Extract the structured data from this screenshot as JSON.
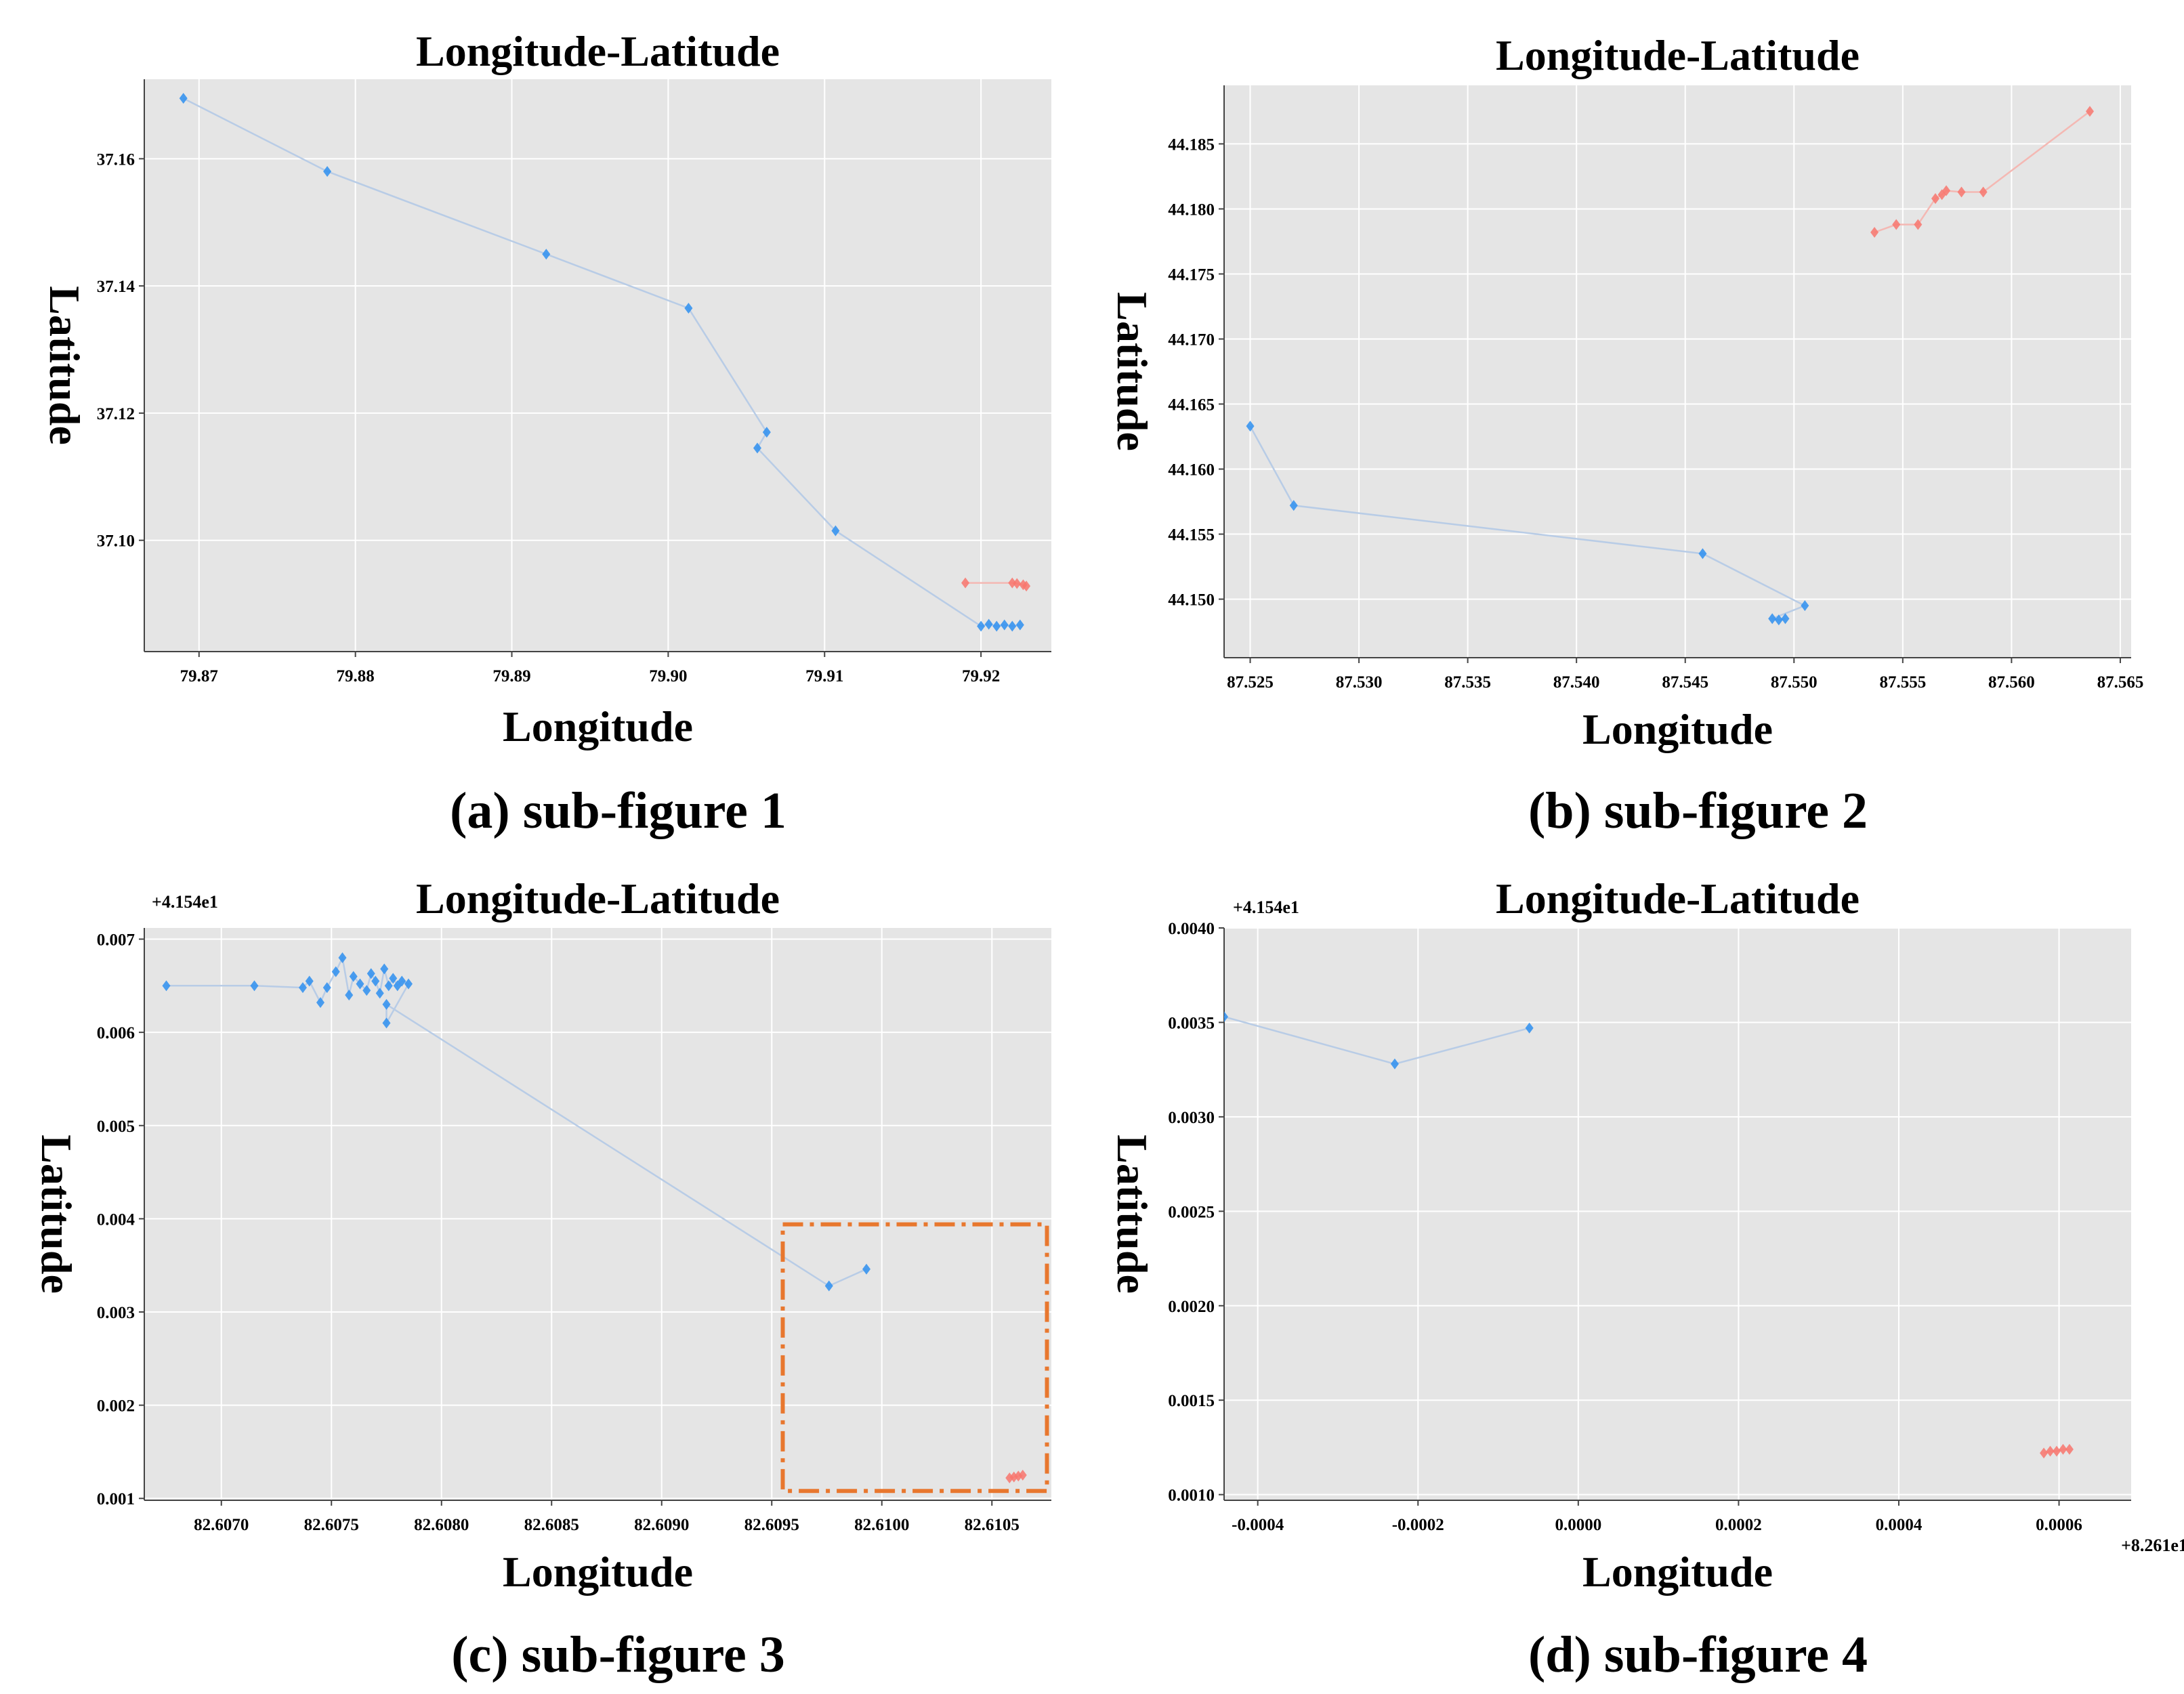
{
  "colors": {
    "panel_bg": "#e5e5e5",
    "grid": "#ffffff",
    "blue": "#2e8ff0",
    "red": "#f8766d",
    "blue_line": "#b8cce6",
    "red_line": "#f4b8b3",
    "highlight_box": "#e8772e"
  },
  "chart_data": [
    {
      "type": "scatter",
      "title": "Longitude-Latitude",
      "xlabel": "Longitude",
      "ylabel": "Latitude",
      "caption": "(a) sub-figure 1",
      "xlim": [
        79.8665,
        79.9245
      ],
      "ylim": [
        37.0825,
        37.1725
      ],
      "xticks": [
        79.87,
        79.88,
        79.89,
        79.9,
        79.91,
        79.92
      ],
      "xtick_labels": [
        "79.87",
        "79.88",
        "79.89",
        "79.90",
        "79.91",
        "79.92"
      ],
      "yticks": [
        37.1,
        37.12,
        37.14,
        37.16
      ],
      "ytick_labels": [
        "37.10",
        "37.12",
        "37.14",
        "37.16"
      ],
      "grid": true,
      "series": [
        {
          "name": "blue",
          "points": [
            [
              79.869,
              37.1695
            ],
            [
              79.8782,
              37.158
            ],
            [
              79.8922,
              37.145
            ],
            [
              79.9013,
              37.1365
            ],
            [
              79.9063,
              37.117
            ],
            [
              79.9057,
              37.1145
            ],
            [
              79.9107,
              37.1015
            ],
            [
              79.92,
              37.0865
            ],
            [
              79.9205,
              37.0868
            ],
            [
              79.921,
              37.0865
            ],
            [
              79.9215,
              37.0867
            ],
            [
              79.922,
              37.0865
            ],
            [
              79.9225,
              37.0867
            ]
          ]
        },
        {
          "name": "red",
          "points": [
            [
              79.919,
              37.0933
            ],
            [
              79.922,
              37.0933
            ],
            [
              79.9223,
              37.0932
            ],
            [
              79.9227,
              37.093
            ],
            [
              79.9229,
              37.0928
            ]
          ]
        }
      ]
    },
    {
      "type": "scatter",
      "title": "Longitude-Latitude",
      "xlabel": "Longitude",
      "ylabel": "Latitude",
      "caption": "(b) sub-figure 2",
      "xlim": [
        87.5238,
        87.5655
      ],
      "ylim": [
        44.1455,
        44.1895
      ],
      "xticks": [
        87.525,
        87.53,
        87.535,
        87.54,
        87.545,
        87.55,
        87.555,
        87.56,
        87.565
      ],
      "xtick_labels": [
        "87.525",
        "87.530",
        "87.535",
        "87.540",
        "87.545",
        "87.550",
        "87.555",
        "87.560",
        "87.565"
      ],
      "yticks": [
        44.15,
        44.155,
        44.16,
        44.165,
        44.17,
        44.175,
        44.18,
        44.185
      ],
      "ytick_labels": [
        "44.150",
        "44.155",
        "44.160",
        "44.165",
        "44.170",
        "44.175",
        "44.180",
        "44.185"
      ],
      "grid": true,
      "series": [
        {
          "name": "blue",
          "points": [
            [
              87.525,
              44.1633
            ],
            [
              87.527,
              44.1572
            ],
            [
              87.5458,
              44.1535
            ],
            [
              87.5505,
              44.1495
            ],
            [
              87.549,
              44.1485
            ],
            [
              87.5493,
              44.1484
            ],
            [
              87.5496,
              44.1485
            ]
          ]
        },
        {
          "name": "red",
          "points": [
            [
              87.5537,
              44.1782
            ],
            [
              87.5547,
              44.1788
            ],
            [
              87.5557,
              44.1788
            ],
            [
              87.5565,
              44.1808
            ],
            [
              87.5568,
              44.1811
            ],
            [
              87.557,
              44.1814
            ],
            [
              87.5577,
              44.1813
            ],
            [
              87.5587,
              44.1813
            ],
            [
              87.5636,
              44.1875
            ]
          ]
        }
      ]
    },
    {
      "type": "scatter",
      "title": "Longitude-Latitude",
      "xlabel": "Longitude",
      "ylabel": "Latitude",
      "caption": "(c) sub-figure 3",
      "y_offset_label": "+4.154e1",
      "xlim": [
        82.60665,
        82.61077
      ],
      "ylim": [
        0.00098,
        0.00712
      ],
      "xticks": [
        82.607,
        82.6075,
        82.608,
        82.6085,
        82.609,
        82.6095,
        82.61,
        82.6105
      ],
      "xtick_labels": [
        "82.6070",
        "82.6075",
        "82.6080",
        "82.6085",
        "82.6090",
        "82.6095",
        "82.6100",
        "82.6105"
      ],
      "yticks": [
        0.001,
        0.002,
        0.003,
        0.004,
        0.005,
        0.006,
        0.007
      ],
      "ytick_labels": [
        "0.001",
        "0.002",
        "0.003",
        "0.004",
        "0.005",
        "0.006",
        "0.007"
      ],
      "grid": true,
      "highlight_box": {
        "x": [
          82.60955,
          82.61075
        ],
        "y": [
          0.00108,
          0.00394
        ]
      },
      "series": [
        {
          "name": "blue",
          "points": [
            [
              82.60675,
              0.0065
            ],
            [
              82.60715,
              0.0065
            ],
            [
              82.60737,
              0.00648
            ],
            [
              82.6074,
              0.00655
            ],
            [
              82.60745,
              0.00632
            ],
            [
              82.60748,
              0.00648
            ],
            [
              82.60752,
              0.00665
            ],
            [
              82.60755,
              0.0068
            ],
            [
              82.60758,
              0.0064
            ],
            [
              82.6076,
              0.0066
            ],
            [
              82.60763,
              0.00652
            ],
            [
              82.60766,
              0.00645
            ],
            [
              82.60768,
              0.00663
            ],
            [
              82.6077,
              0.00655
            ],
            [
              82.60772,
              0.00642
            ],
            [
              82.60774,
              0.00668
            ],
            [
              82.60776,
              0.0065
            ],
            [
              82.60778,
              0.00658
            ],
            [
              82.6078,
              0.0065
            ],
            [
              82.60782,
              0.00655
            ],
            [
              82.60785,
              0.00652
            ],
            [
              82.60775,
              0.0061
            ],
            [
              82.60775,
              0.0063
            ],
            [
              82.60976,
              0.00328
            ],
            [
              82.60993,
              0.00346
            ]
          ]
        },
        {
          "name": "red",
          "points": [
            [
              82.61058,
              0.00122
            ],
            [
              82.6106,
              0.00123
            ],
            [
              82.61062,
              0.00124
            ],
            [
              82.61064,
              0.00125
            ]
          ]
        }
      ]
    },
    {
      "type": "scatter",
      "title": "Longitude-Latitude",
      "xlabel": "Longitude",
      "ylabel": "Latitude",
      "caption": "(d) sub-figure 4",
      "x_offset_label": "+8.261e1",
      "y_offset_label": "+4.154e1",
      "xlim": [
        -0.000442,
        0.00069
      ],
      "ylim": [
        0.00097,
        0.004
      ],
      "xticks": [
        -0.0004,
        -0.0002,
        0.0,
        0.0002,
        0.0004,
        0.0006
      ],
      "xtick_labels": [
        "-0.0004",
        "-0.0002",
        "0.0000",
        "0.0002",
        "0.0004",
        "0.0006"
      ],
      "yticks": [
        0.001,
        0.0015,
        0.002,
        0.0025,
        0.003,
        0.0035,
        0.004
      ],
      "ytick_labels": [
        "0.0010",
        "0.0015",
        "0.0020",
        "0.0025",
        "0.0030",
        "0.0035",
        "0.0040"
      ],
      "grid": true,
      "series": [
        {
          "name": "blue",
          "points": [
            [
              -0.000442,
              0.00353
            ],
            [
              -0.000229,
              0.00328
            ],
            [
              -6.1e-05,
              0.00347
            ]
          ]
        },
        {
          "name": "red",
          "points": [
            [
              0.000581,
              0.00122
            ],
            [
              0.000589,
              0.00123
            ],
            [
              0.000597,
              0.00123
            ],
            [
              0.000605,
              0.00124
            ],
            [
              0.000613,
              0.00124
            ]
          ]
        }
      ]
    }
  ]
}
